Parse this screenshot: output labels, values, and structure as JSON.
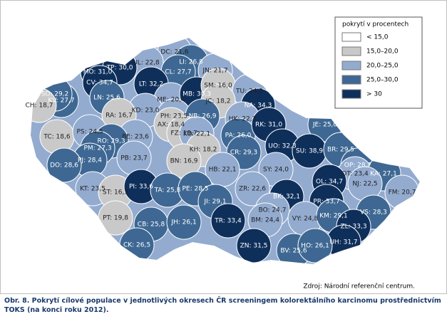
{
  "title": "Obr. 8. Pokrytí cílové populace v jednotlivých okresech ČR screeningem kolorektálního karcinomu prostřednictvím TOKS (na konci roku 2012).",
  "source": "Zdroj: Národní referenční centrum.",
  "legend": {
    "title": "pokrytí v procentech",
    "items": [
      {
        "label": "< 15,0",
        "color": "#ffffff",
        "max": 15.0
      },
      {
        "label": "15,0–20,0",
        "color": "#c9c9c9",
        "min": 15.0,
        "max": 20.0
      },
      {
        "label": "20,0–25,0",
        "color": "#93abcf",
        "min": 20.0,
        "max": 25.0
      },
      {
        "label": "25,0–30,0",
        "color": "#3e6893",
        "min": 25.0,
        "max": 30.0
      },
      {
        "label": "> 30",
        "color": "#0f2f5b",
        "min": 30
      }
    ]
  },
  "districts": [
    {
      "label": "DC: 21,6",
      "value": 21.6
    },
    {
      "label": "UL: 22,8",
      "value": 22.8
    },
    {
      "label": "LI: 26,8",
      "value": 26.8
    },
    {
      "label": "CL: 27,7",
      "value": 27.7
    },
    {
      "label": "JN: 21,7",
      "value": 21.7
    },
    {
      "label": "MO: 31,0",
      "value": 31.0
    },
    {
      "label": "TP: 30,0",
      "value": 30.0
    },
    {
      "label": "CV: 34,7",
      "value": 34.7
    },
    {
      "label": "LN: 25,6",
      "value": 25.6
    },
    {
      "label": "KV: 27,7",
      "value": 27.7
    },
    {
      "label": "SO: 29,2",
      "value": 29.2
    },
    {
      "label": "CH: 18,7",
      "value": 18.7
    },
    {
      "label": "LT: 32,2",
      "value": 32.2
    },
    {
      "label": "ME: 20,4",
      "value": 20.4
    },
    {
      "label": "MB: 30,3",
      "value": 30.3
    },
    {
      "label": "SM: 16,0",
      "value": 16.0
    },
    {
      "label": "TU: 24,2",
      "value": 24.2
    },
    {
      "label": "JC: 18,2",
      "value": 18.2
    },
    {
      "label": "NA: 34,3",
      "value": 34.3
    },
    {
      "label": "KD: 23,0",
      "value": 23.0
    },
    {
      "label": "RA: 16,7",
      "value": 16.7
    },
    {
      "label": "PH: 23,5",
      "value": 23.5
    },
    {
      "label": "NB: 26,9",
      "value": 26.9
    },
    {
      "label": "HK: 22,3",
      "value": 22.3
    },
    {
      "label": "AX: 18,4",
      "value": 18.4
    },
    {
      "label": "FZ: 19,7",
      "value": 19.7
    },
    {
      "label": "KO: 22,1",
      "value": 22.1
    },
    {
      "label": "PA: 26,0",
      "value": 26.0
    },
    {
      "label": "RK: 31,0",
      "value": 31.0
    },
    {
      "label": "JE: 25,0",
      "value": 25.0
    },
    {
      "label": "TC: 18,6",
      "value": 18.6
    },
    {
      "label": "PS: 24,5",
      "value": 24.5
    },
    {
      "label": "BE: 23,6",
      "value": 23.6
    },
    {
      "label": "RO: 29,3",
      "value": 29.3
    },
    {
      "label": "PM: 27,3",
      "value": 27.3
    },
    {
      "label": "PJ: 28,4",
      "value": 28.4
    },
    {
      "label": "DO: 28,6",
      "value": 28.6
    },
    {
      "label": "PB: 23,7",
      "value": 23.7
    },
    {
      "label": "KH: 18,2",
      "value": 18.2
    },
    {
      "label": "BN: 16,9",
      "value": 16.9
    },
    {
      "label": "CR: 29,3",
      "value": 29.3
    },
    {
      "label": "UO: 32,3",
      "value": 32.3
    },
    {
      "label": "SU: 38,9",
      "value": 38.9
    },
    {
      "label": "BR: 29,5",
      "value": 29.5
    },
    {
      "label": "OP: 28,7",
      "value": 28.7
    },
    {
      "label": "OT: 23,4",
      "value": 23.4
    },
    {
      "label": "KA: 27,1",
      "value": 27.1
    },
    {
      "label": "HB: 22,1",
      "value": 22.1
    },
    {
      "label": "SY: 24,0",
      "value": 24.0
    },
    {
      "label": "NJ: 22,5",
      "value": 22.5
    },
    {
      "label": "OL: 34,7",
      "value": 34.7
    },
    {
      "label": "KT: 23,5",
      "value": 23.5
    },
    {
      "label": "ST: 16,3",
      "value": 16.3
    },
    {
      "label": "PI: 33,6",
      "value": 33.6
    },
    {
      "label": "TA: 25,8",
      "value": 25.8
    },
    {
      "label": "PE: 28,5",
      "value": 28.5
    },
    {
      "label": "ZR: 22,6",
      "value": 22.6
    },
    {
      "label": "BK: 32,1",
      "value": 32.1
    },
    {
      "label": "PR: 33,7",
      "value": 33.7
    },
    {
      "label": "FM: 20,7",
      "value": 20.7
    },
    {
      "label": "JI: 29,1",
      "value": 29.1
    },
    {
      "label": "PT: 19,8",
      "value": 19.8
    },
    {
      "label": "BO: 24,7",
      "value": 24.7
    },
    {
      "label": "VY: 24,8",
      "value": 24.8
    },
    {
      "label": "VS: 28,3",
      "value": 28.3
    },
    {
      "label": "KM: 29,1",
      "value": 29.1
    },
    {
      "label": "BM: 24,4",
      "value": 24.4
    },
    {
      "label": "CB: 25,8",
      "value": 25.8
    },
    {
      "label": "TR: 33,4",
      "value": 33.4
    },
    {
      "label": "JH: 26,1",
      "value": 26.1
    },
    {
      "label": "ZL: 33,3",
      "value": 33.3
    },
    {
      "label": "UH: 31,7",
      "value": 31.7
    },
    {
      "label": "CK: 26,5",
      "value": 26.5
    },
    {
      "label": "ZN: 31,5",
      "value": 31.5
    },
    {
      "label": "BV: 25,6",
      "value": 25.6
    },
    {
      "label": "HO: 26,1",
      "value": 26.1
    }
  ]
}
